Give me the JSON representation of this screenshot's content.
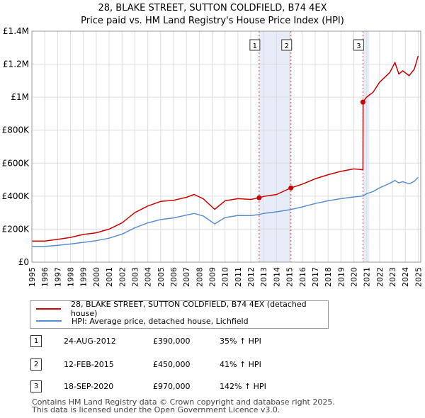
{
  "title_line1": "28, BLAKE STREET, SUTTON COLDFIELD, B74 4EX",
  "title_line2": "Price paid vs. HM Land Registry's House Price Index (HPI)",
  "colors": {
    "price": "#cc0000",
    "hpi": "#5b8fd0",
    "shade": "#e6ecf8",
    "grid": "#dddddd"
  },
  "chart_data": {
    "type": "line",
    "title": "Price paid vs. HM Land Registry's House Price Index (HPI)",
    "xlim": [
      1995,
      2025.2
    ],
    "ylim": [
      0,
      1400000
    ],
    "x_ticks": [
      "1995",
      "1996",
      "1997",
      "1998",
      "1999",
      "2000",
      "2001",
      "2002",
      "2003",
      "2004",
      "2005",
      "2006",
      "2007",
      "2008",
      "2009",
      "2010",
      "2011",
      "2012",
      "2013",
      "2014",
      "2015",
      "2016",
      "2017",
      "2018",
      "2019",
      "2020",
      "2021",
      "2022",
      "2023",
      "2024",
      "2025"
    ],
    "y_ticks": [
      {
        "value": 0,
        "label": "£0"
      },
      {
        "value": 200000,
        "label": "£200K"
      },
      {
        "value": 400000,
        "label": "£400K"
      },
      {
        "value": 600000,
        "label": "£600K"
      },
      {
        "value": 800000,
        "label": "£800K"
      },
      {
        "value": 1000000,
        "label": "£1M"
      },
      {
        "value": 1200000,
        "label": "£1.2M"
      },
      {
        "value": 1400000,
        "label": "£1.4M"
      }
    ],
    "series": [
      {
        "name": "28, BLAKE STREET, SUTTON COLDFIELD, B74 4EX (detached house)",
        "color": "#cc0000",
        "x": [
          1995,
          1996,
          1997,
          1998,
          1999,
          2000,
          2001,
          2002,
          2003,
          2004,
          2005,
          2006,
          2007,
          2007.6,
          2008.3,
          2009.2,
          2010,
          2011,
          2012,
          2012.65,
          2013,
          2014,
          2015.12,
          2016,
          2017,
          2018,
          2019,
          2020,
          2020.71,
          2020.72,
          2021,
          2021.5,
          2022,
          2022.8,
          2023.2,
          2023.5,
          2023.8,
          2024.3,
          2024.7,
          2025.0
        ],
        "y": [
          128000,
          128000,
          138000,
          150000,
          168000,
          178000,
          200000,
          238000,
          300000,
          340000,
          368000,
          375000,
          393000,
          410000,
          385000,
          320000,
          372000,
          385000,
          380000,
          390000,
          398000,
          410000,
          450000,
          473000,
          505000,
          530000,
          550000,
          565000,
          560000,
          970000,
          1000000,
          1030000,
          1090000,
          1150000,
          1210000,
          1140000,
          1160000,
          1130000,
          1170000,
          1250000
        ]
      },
      {
        "name": "HPI: Average price, detached house, Lichfield",
        "color": "#5b8fd0",
        "x": [
          1995,
          1996,
          1997,
          1998,
          1999,
          2000,
          2001,
          2002,
          2003,
          2004,
          2005,
          2006,
          2007,
          2007.6,
          2008.3,
          2009.2,
          2010,
          2011,
          2012,
          2012.65,
          2013,
          2014,
          2015.12,
          2016,
          2017,
          2018,
          2019,
          2020,
          2020.71,
          2021,
          2021.5,
          2022,
          2022.8,
          2023.2,
          2023.5,
          2023.8,
          2024.3,
          2024.7,
          2025.0
        ],
        "y": [
          95000,
          95000,
          102000,
          110000,
          120000,
          130000,
          145000,
          170000,
          208000,
          238000,
          258000,
          268000,
          285000,
          295000,
          280000,
          232000,
          270000,
          283000,
          282000,
          289000,
          295000,
          305000,
          319000,
          335000,
          355000,
          372000,
          385000,
          395000,
          401000,
          415000,
          428000,
          450000,
          478000,
          495000,
          480000,
          488000,
          475000,
          490000,
          515000
        ]
      }
    ],
    "sales": [
      {
        "label": "1",
        "x": 2012.65,
        "price": 390000
      },
      {
        "label": "2",
        "x": 2015.12,
        "price": 450000
      },
      {
        "label": "3",
        "x": 2020.71,
        "price": 970000
      }
    ],
    "shaded_ranges": [
      [
        2012.65,
        2015.12
      ],
      [
        2020.71,
        2021.2
      ]
    ]
  },
  "legend": {
    "price_label": "28, BLAKE STREET, SUTTON COLDFIELD, B74 4EX (detached house)",
    "hpi_label": "HPI: Average price, detached house, Lichfield"
  },
  "sales_table": [
    {
      "num": "1",
      "date": "24-AUG-2012",
      "price": "£390,000",
      "hpi": "35% ↑ HPI"
    },
    {
      "num": "2",
      "date": "12-FEB-2015",
      "price": "£450,000",
      "hpi": "41% ↑ HPI"
    },
    {
      "num": "3",
      "date": "18-SEP-2020",
      "price": "£970,000",
      "hpi": "142% ↑ HPI"
    }
  ],
  "footer_line1": "Contains HM Land Registry data © Crown copyright and database right 2025.",
  "footer_line2": "This data is licensed under the Open Government Licence v3.0."
}
